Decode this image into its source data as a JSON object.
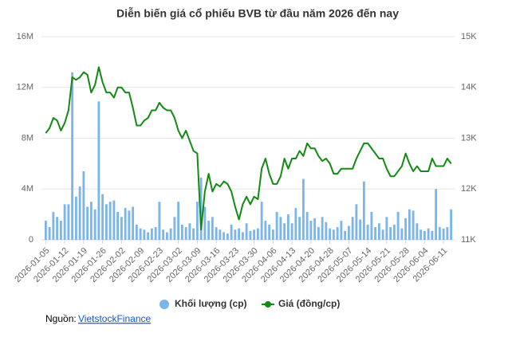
{
  "chart_data": {
    "type": "combo",
    "title": "Diễn biến giá cổ phiếu BVB từ đầu năm 2026 đến nay",
    "categories": [
      "2026-01-05",
      null,
      null,
      null,
      null,
      "2026-01-12",
      null,
      null,
      null,
      null,
      "2026-01-19",
      null,
      null,
      null,
      null,
      "2026-01-26",
      null,
      null,
      null,
      null,
      "2026-02-02",
      null,
      null,
      null,
      null,
      "2026-02-09",
      null,
      null,
      null,
      null,
      "2026-02-23",
      null,
      null,
      null,
      null,
      "2026-03-02",
      null,
      null,
      null,
      null,
      "2026-03-09",
      null,
      null,
      null,
      null,
      "2026-03-16",
      null,
      null,
      null,
      null,
      "2026-03-23",
      null,
      null,
      null,
      null,
      "2026-03-30",
      null,
      null,
      null,
      null,
      "2026-04-06",
      null,
      null,
      null,
      null,
      "2026-04-13",
      null,
      null,
      null,
      null,
      "2026-04-20",
      null,
      null,
      null,
      null,
      "2026-04-28",
      null,
      null,
      null,
      null,
      "2026-05-07",
      null,
      null,
      null,
      null,
      "2026-05-14",
      null,
      null,
      null,
      null,
      "2026-05-21",
      null,
      null,
      null,
      null,
      "2026-05-28",
      null,
      null,
      null,
      null,
      "2026-06-04",
      null,
      null,
      null,
      null,
      "2026-06-11",
      null,
      null
    ],
    "series": [
      {
        "name": "Khối lượng (cp)",
        "type": "bar",
        "color": "#7cb5ec",
        "values": [
          1500000,
          1000000,
          2200000,
          1800000,
          1500000,
          2800000,
          2800000,
          13200000,
          3400000,
          4200000,
          5400000,
          2600000,
          3000000,
          2400000,
          10900000,
          3600000,
          2800000,
          3000000,
          3100000,
          2200000,
          1800000,
          2500000,
          2300000,
          2600000,
          1200000,
          900000,
          800000,
          600000,
          900000,
          1000000,
          3000000,
          800000,
          600000,
          900000,
          1800000,
          3000000,
          1200000,
          1000000,
          1300000,
          900000,
          3000000,
          4900000,
          2600000,
          1500000,
          1800000,
          1000000,
          800000,
          600000,
          500000,
          1200000,
          800000,
          900000,
          600000,
          1300000,
          700000,
          800000,
          900000,
          3000000,
          1500000,
          1200000,
          800000,
          2200000,
          1800000,
          1300000,
          2000000,
          1300000,
          2500000,
          1800000,
          4800000,
          2200000,
          1500000,
          1700000,
          1000000,
          1800000,
          1400000,
          900000,
          800000,
          1000000,
          1500000,
          700000,
          1100000,
          1800000,
          2800000,
          1600000,
          4600000,
          1200000,
          2200000,
          1000000,
          1300000,
          800000,
          1800000,
          1000000,
          1200000,
          2200000,
          900000,
          1700000,
          2400000,
          2300000,
          1300000,
          800000,
          700000,
          900000,
          700000,
          4000000,
          1000000,
          900000,
          1000000,
          2400000
        ]
      },
      {
        "name": "Giá (đồng/cp)",
        "type": "line",
        "axis": "y2",
        "color": "#138a13",
        "values": [
          13100,
          13200,
          13400,
          13350,
          13150,
          13300,
          13550,
          14200,
          14150,
          14200,
          14300,
          14250,
          13900,
          14050,
          14400,
          14100,
          13900,
          13900,
          13800,
          14000,
          14000,
          13900,
          13900,
          13600,
          13250,
          13250,
          13350,
          13400,
          13550,
          13550,
          13700,
          13600,
          13550,
          13550,
          13400,
          13150,
          13000,
          13150,
          12950,
          12750,
          12700,
          11200,
          11950,
          12300,
          11950,
          12100,
          12050,
          12150,
          12100,
          11950,
          11650,
          11400,
          11700,
          11850,
          11700,
          11850,
          11800,
          12400,
          12600,
          12300,
          12100,
          12100,
          12250,
          12600,
          12400,
          12600,
          12600,
          12750,
          12650,
          12900,
          12800,
          12800,
          12650,
          12550,
          12600,
          12500,
          12300,
          12300,
          12400,
          12400,
          12400,
          12400,
          12600,
          12750,
          12900,
          12900,
          12800,
          12700,
          12600,
          12600,
          12400,
          12250,
          12250,
          12350,
          12450,
          12700,
          12500,
          12350,
          12450,
          12350,
          12350,
          12350,
          12600,
          12450,
          12450,
          12450,
          12600,
          12500
        ]
      }
    ],
    "ylim": [
      0,
      16000000
    ],
    "yticks": [
      0,
      {
        "value": 4000000,
        "label": "4M"
      },
      {
        "value": 8000000,
        "label": "8M"
      },
      {
        "value": 12000000,
        "label": "12M"
      },
      {
        "value": 16000000,
        "label": "16M"
      }
    ],
    "y2lim": [
      11000,
      15000
    ],
    "y2ticks": [
      {
        "value": 11000,
        "label": "11K"
      },
      {
        "value": 12000,
        "label": "12K"
      },
      {
        "value": 13000,
        "label": "13K"
      },
      {
        "value": 14000,
        "label": "14K"
      },
      {
        "value": 15000,
        "label": "15K"
      }
    ],
    "grid": true,
    "legend": "bottom",
    "source_label": "Nguồn:",
    "source_link": "VietstockFinance"
  }
}
